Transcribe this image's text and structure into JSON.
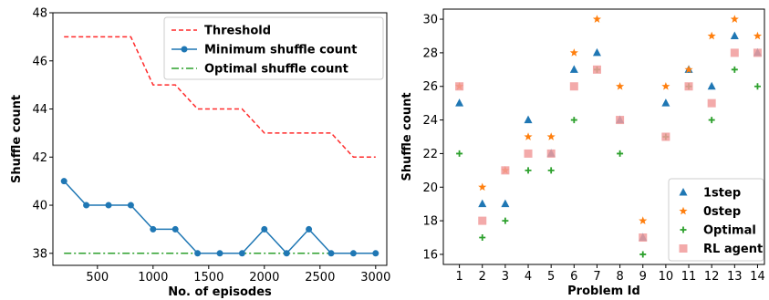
{
  "chart_data": [
    {
      "type": "line",
      "xlabel": "No. of episodes",
      "ylabel": "Shuffle count",
      "xlim": [
        100,
        3100
      ],
      "ylim": [
        37.5,
        48
      ],
      "xticks": [
        500,
        1000,
        1500,
        2000,
        2500,
        3000
      ],
      "yticks": [
        38,
        40,
        42,
        44,
        46,
        48
      ],
      "grid": false,
      "legend": "top-right",
      "x": [
        200,
        400,
        600,
        800,
        1000,
        1200,
        1400,
        1600,
        1800,
        2000,
        2200,
        2400,
        2600,
        2800,
        3000
      ],
      "series": [
        {
          "name": "Threshold",
          "style": "dashed",
          "color": "#ff2a2a",
          "step": true,
          "values": [
            47,
            47,
            47,
            47,
            45,
            45,
            44,
            44,
            44,
            43,
            43,
            43,
            43,
            42,
            42
          ]
        },
        {
          "name": "Minimum shuffle count",
          "style": "solid-markers",
          "color": "#1f77b4",
          "values": [
            41,
            40,
            40,
            40,
            39,
            39,
            38,
            38,
            38,
            39,
            38,
            39,
            38,
            38,
            38
          ]
        },
        {
          "name": "Optimal shuffle count",
          "style": "dashdot",
          "color": "#2ca02c",
          "values": [
            38,
            38,
            38,
            38,
            38,
            38,
            38,
            38,
            38,
            38,
            38,
            38,
            38,
            38,
            38
          ]
        }
      ]
    },
    {
      "type": "scatter",
      "xlabel": "Problem Id",
      "ylabel": "Shuffle count",
      "xlim": [
        0.3,
        14.3
      ],
      "ylim": [
        15.4,
        30.6
      ],
      "xticks": [
        1,
        2,
        3,
        4,
        5,
        6,
        7,
        8,
        9,
        10,
        11,
        12,
        13,
        14
      ],
      "yticks": [
        16,
        18,
        20,
        22,
        24,
        26,
        28,
        30
      ],
      "grid": false,
      "legend": "bottom-right",
      "categories": [
        1,
        2,
        3,
        4,
        5,
        6,
        7,
        8,
        9,
        10,
        11,
        12,
        13,
        14
      ],
      "series": [
        {
          "name": "1step",
          "marker": "triangle",
          "color": "#1f77b4",
          "values": [
            25,
            19,
            19,
            24,
            22,
            27,
            28,
            24,
            17,
            25,
            27,
            26,
            29,
            28
          ]
        },
        {
          "name": "0step",
          "marker": "star",
          "color": "#ff7f0e",
          "values": [
            26,
            20,
            21,
            23,
            23,
            28,
            30,
            26,
            18,
            26,
            27,
            29,
            30,
            29
          ]
        },
        {
          "name": "Optimal",
          "marker": "plus",
          "color": "#2ca02c",
          "values": [
            22,
            17,
            18,
            21,
            21,
            24,
            27,
            22,
            16,
            23,
            26,
            24,
            27,
            26
          ]
        },
        {
          "name": "RL agent",
          "marker": "square",
          "color": "#f19b9b",
          "values": [
            26,
            18,
            21,
            22,
            22,
            26,
            27,
            24,
            17,
            23,
            26,
            25,
            28,
            28
          ]
        }
      ]
    }
  ]
}
